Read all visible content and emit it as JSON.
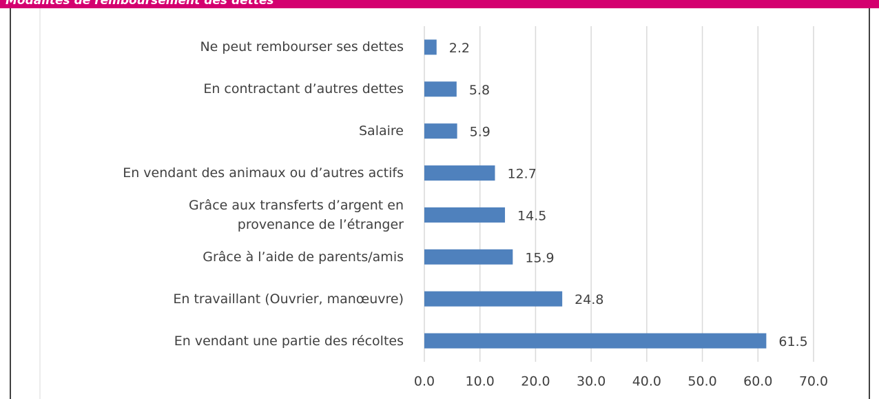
{
  "chart_data": {
    "type": "bar",
    "orientation": "horizontal",
    "title": "Modalités de remboursement des dettes",
    "categories": [
      "Ne peut rembourser ses dettes",
      "En contractant d’autres dettes",
      "Salaire",
      "En vendant des animaux ou d’autres actifs",
      "Grâce aux transferts d’argent en\nprovenance de l’étranger",
      "Grâce à l’aide de parents/amis",
      "En travaillant (Ouvrier, manœuvre)",
      "En vendant une partie des récoltes"
    ],
    "values": [
      2.2,
      5.8,
      5.9,
      12.7,
      14.5,
      15.9,
      24.8,
      61.5
    ],
    "color": "#4f81bd",
    "xlim": [
      0,
      70
    ],
    "xticks": [
      {
        "value": 0,
        "label": "0.0"
      },
      {
        "value": 10,
        "label": "10.0"
      },
      {
        "value": 20,
        "label": "20.0"
      },
      {
        "value": 30,
        "label": "30.0"
      },
      {
        "value": 40,
        "label": "40.0"
      },
      {
        "value": 50,
        "label": "50.0"
      },
      {
        "value": 60,
        "label": "60.0"
      },
      {
        "value": 70,
        "label": "70.0"
      }
    ],
    "grid": true
  }
}
